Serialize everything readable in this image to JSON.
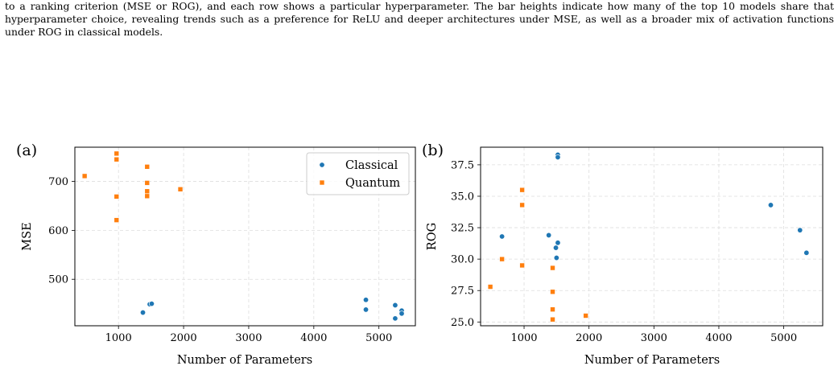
{
  "caption": {
    "text": "to a ranking criterion (MSE or ROG), and each row shows a particular hyperparameter. The bar heights indicate how many of the top 10 models share that hyperparameter choice, revealing trends such as a preference for ReLU and deeper architectures under MSE, as well as a broader mix of activation functions under ROG in classical models."
  },
  "colors": {
    "classical": "#1f77b4",
    "quantum": "#ff7f0e"
  },
  "chart_data": [
    {
      "type": "scatter",
      "panel_label": "(a)",
      "xlabel": "Number of Parameters",
      "ylabel": "MSE",
      "xlim": [
        330,
        5560
      ],
      "ylim": [
        405,
        770
      ],
      "xticks": [
        1000,
        2000,
        3000,
        4000,
        5000
      ],
      "yticks": [
        500,
        600,
        700
      ],
      "grid": true,
      "legend": {
        "placement": "top-right",
        "entries": [
          "Classical",
          "Quantum"
        ]
      },
      "series": [
        {
          "name": "Classical",
          "marker": "circle",
          "color": "#1f77b4",
          "points": [
            [
              1375,
              432
            ],
            [
              1480,
              449
            ],
            [
              1510,
              450
            ],
            [
              4800,
              458
            ],
            [
              4800,
              438
            ],
            [
              5250,
              447
            ],
            [
              5250,
              420
            ],
            [
              5350,
              436
            ],
            [
              5350,
              430
            ]
          ]
        },
        {
          "name": "Quantum",
          "marker": "square",
          "color": "#ff7f0e",
          "points": [
            [
              480,
              711
            ],
            [
              970,
              757
            ],
            [
              970,
              745
            ],
            [
              970,
              669
            ],
            [
              970,
              621
            ],
            [
              1440,
              730
            ],
            [
              1440,
              697
            ],
            [
              1440,
              680
            ],
            [
              1440,
              670
            ],
            [
              1950,
              684
            ]
          ]
        }
      ]
    },
    {
      "type": "scatter",
      "panel_label": "(b)",
      "xlabel": "Number of Parameters",
      "ylabel": "ROG",
      "xlim": [
        330,
        5600
      ],
      "ylim": [
        24.7,
        38.9
      ],
      "xticks": [
        1000,
        2000,
        3000,
        4000,
        5000
      ],
      "yticks": [
        25.0,
        27.5,
        30.0,
        32.5,
        35.0,
        37.5
      ],
      "ytick_labels": [
        "25.0",
        "27.5",
        "30.0",
        "32.5",
        "35.0",
        "37.5"
      ],
      "grid": true,
      "series": [
        {
          "name": "Classical",
          "marker": "circle",
          "color": "#1f77b4",
          "points": [
            [
              1520,
              38.3
            ],
            [
              1520,
              38.1
            ],
            [
              660,
              31.8
            ],
            [
              1380,
              31.9
            ],
            [
              1520,
              31.3
            ],
            [
              1490,
              30.9
            ],
            [
              1500,
              30.1
            ],
            [
              4800,
              34.3
            ],
            [
              5250,
              32.3
            ],
            [
              5350,
              30.5
            ]
          ]
        },
        {
          "name": "Quantum",
          "marker": "square",
          "color": "#ff7f0e",
          "points": [
            [
              970,
              35.5
            ],
            [
              970,
              34.3
            ],
            [
              660,
              30.0
            ],
            [
              970,
              29.5
            ],
            [
              1440,
              29.3
            ],
            [
              480,
              27.8
            ],
            [
              1440,
              27.4
            ],
            [
              1440,
              26.0
            ],
            [
              1440,
              25.2
            ],
            [
              1950,
              25.5
            ]
          ]
        }
      ]
    }
  ]
}
